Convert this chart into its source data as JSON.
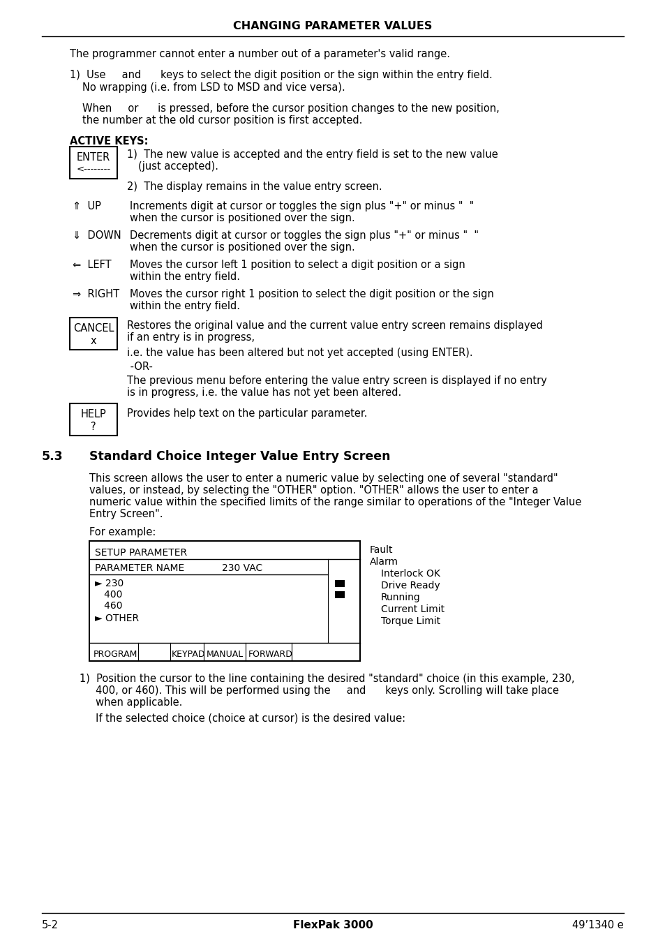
{
  "title": "CHANGING PARAMETER VALUES",
  "bg_color": "#ffffff",
  "footer_left": "5-2",
  "footer_center": "FlexPak 3000",
  "footer_right": "49’1340 e",
  "section_number": "5.3",
  "section_title": "Standard Choice Integer Value Entry Screen",
  "body_lines": [
    "The programmer cannot enter a number out of a parameter’s valid range.",
    "1)  Use     and      keys to select the digit position or the sign within the entry field.",
    "   No wrapping (i.e. from LSD to MSD and vice versa).",
    "   When     or      is pressed, before the cursor position changes to the new position,",
    "   the number at the old cursor position is first accepted."
  ],
  "active_keys_label": "ACTIVE KEYS:",
  "enter_lines": [
    "ENTER",
    "<--------"
  ],
  "enter_desc": [
    "1)  The new value is accepted and the entry field is set to the new value",
    "       (just accepted).",
    "2)  The display remains in the value entry screen."
  ],
  "up_desc": [
    "Increments digit at cursor or toggles the sign plus \"+\" or minus \"  \"",
    "when the cursor is positioned over the sign."
  ],
  "down_desc": [
    "Decrements digit at cursor or toggles the sign plus \"+\" or minus \"  \"",
    "when the cursor is positioned over the sign."
  ],
  "left_desc": [
    "Moves the cursor left 1 position to select a digit position or a sign",
    "within the entry field."
  ],
  "right_desc": [
    "Moves the cursor right 1 position to select the digit position or the sign",
    "within the entry field."
  ],
  "cancel_lines": [
    "CANCEL",
    "x"
  ],
  "cancel_desc": [
    "Restores the original value and the current value entry screen remains displayed",
    "if an entry is in progress,",
    "",
    "i.e. the value has been altered but not yet accepted (using ENTER).",
    "",
    "-OR-",
    "",
    "The previous menu before entering the value entry screen is displayed if no entry",
    "is in progress, i.e. the value has not yet been altered."
  ],
  "help_lines": [
    "HELP",
    "?"
  ],
  "help_desc": "Provides help text on the particular parameter.",
  "para_lines": [
    "This screen allows the user to enter a numeric value by selecting one of several \"standard\"",
    "values, or instead, by selecting the \"OTHER\" option. \"OTHER\" allows the user to enter a",
    "numeric value within the specified limits of the range similar to operations of the \"Integer Value",
    "Entry Screen\"."
  ],
  "for_example": "For example:",
  "screen_setup": "SETUP PARAMETER",
  "screen_param": "PARAMETER NAME",
  "screen_value": "230 VAC",
  "screen_choices": [
    "► 230",
    "   400",
    "   460",
    "► OTHER"
  ],
  "screen_status": [
    "PROGRAM",
    "KEYPAD",
    "MANUAL",
    "FORWARD"
  ],
  "indicators": [
    "Fault",
    "Alarm",
    "Interlock OK",
    "Drive Ready",
    "Running",
    "Current Limit",
    "Torque Limit"
  ],
  "instr1a": "1)  Position the cursor to the line containing the desired \"standard\" choice (in this example, 230,",
  "instr1b": "     400, or 460). This will be performed using the     and      keys only. Scrolling will take place",
  "instr1c": "     when applicable.",
  "instr2": "     If the selected choice (choice at cursor) is the desired value:"
}
